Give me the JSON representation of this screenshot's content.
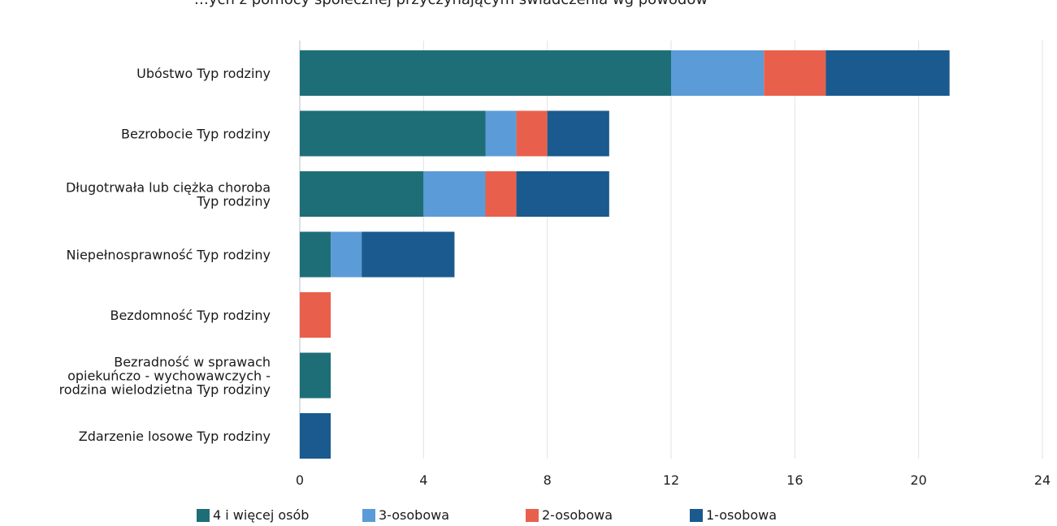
{
  "chart_data": {
    "type": "bar",
    "orientation": "horizontal",
    "stacked": true,
    "title": "…ych z pomocy społecznej przyczynającym świadczenia wg powodów",
    "categories": [
      [
        "Ubóstwo Typ rodziny"
      ],
      [
        "Bezrobocie Typ rodziny"
      ],
      [
        "Długotrwała lub ciężka choroba",
        "Typ rodziny"
      ],
      [
        "Niepełnosprawność Typ rodziny"
      ],
      [
        "Bezdomność Typ rodziny"
      ],
      [
        "Bezradność w sprawach",
        "opiekuńczo - wychowawczych -",
        "rodzina wielodzietna Typ rodziny"
      ],
      [
        "Zdarzenie losowe Typ rodziny"
      ]
    ],
    "series": [
      {
        "name": "4  i więcej osób",
        "color": "#1e6e78",
        "values": [
          12,
          6,
          4,
          1,
          0,
          1,
          0
        ]
      },
      {
        "name": "3-osobowa",
        "color": "#5b9bd8",
        "values": [
          3,
          1,
          2,
          1,
          0,
          0,
          0
        ]
      },
      {
        "name": "2-osobowa",
        "color": "#e8604c",
        "values": [
          2,
          1,
          1,
          0,
          1,
          0,
          0
        ]
      },
      {
        "name": "1-osobowa",
        "color": "#1a5a8e",
        "values": [
          4,
          2,
          3,
          3,
          0,
          0,
          1
        ]
      }
    ],
    "xlim": [
      0,
      24
    ],
    "xticks": [
      "0",
      "4",
      "8",
      "12",
      "16",
      "20",
      "24"
    ],
    "grid": true,
    "legend_position": "bottom"
  }
}
